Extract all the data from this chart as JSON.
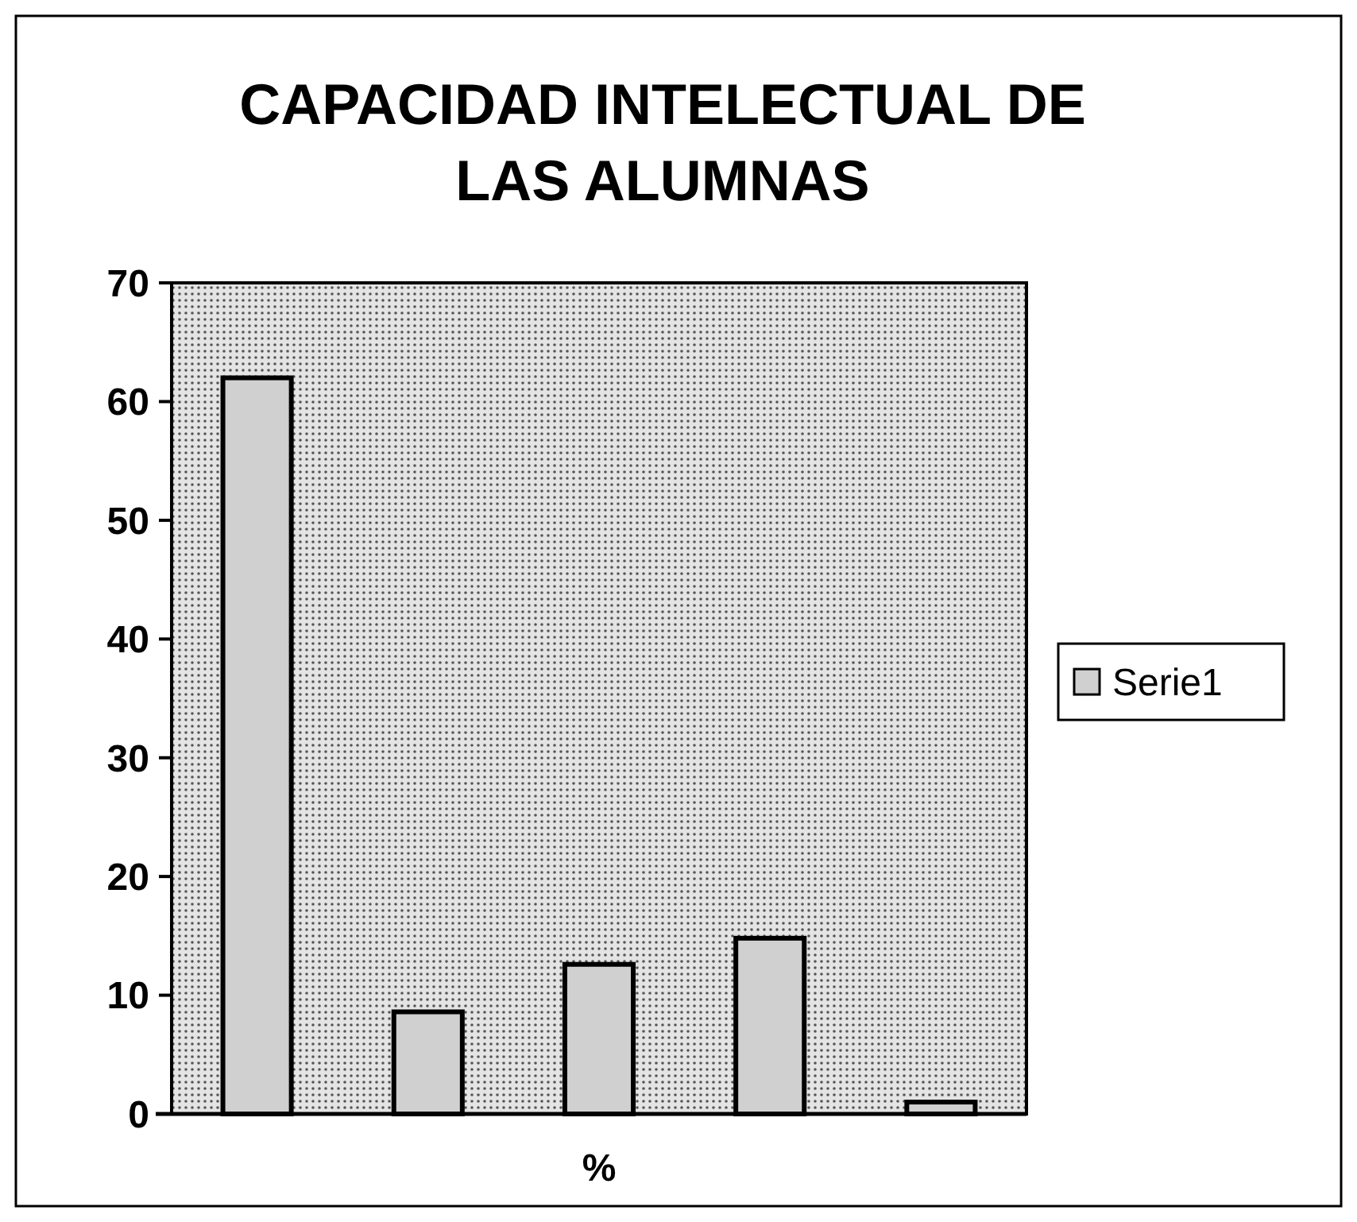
{
  "chart_data": {
    "type": "bar",
    "title": "CAPACIDAD INTELECTUAL DE\nLAS ALUMNAS",
    "xlabel": "%",
    "categories": [
      null,
      null,
      null,
      null,
      null
    ],
    "series": [
      {
        "name": "Serie1",
        "color": "#d0d0d0",
        "values": [
          62,
          8.6,
          12.6,
          14.8,
          1
        ]
      }
    ],
    "ylim": [
      0,
      70
    ],
    "yticks": [
      0,
      10,
      20,
      30,
      40,
      50,
      60,
      70
    ],
    "grid": false,
    "legend": "right"
  }
}
